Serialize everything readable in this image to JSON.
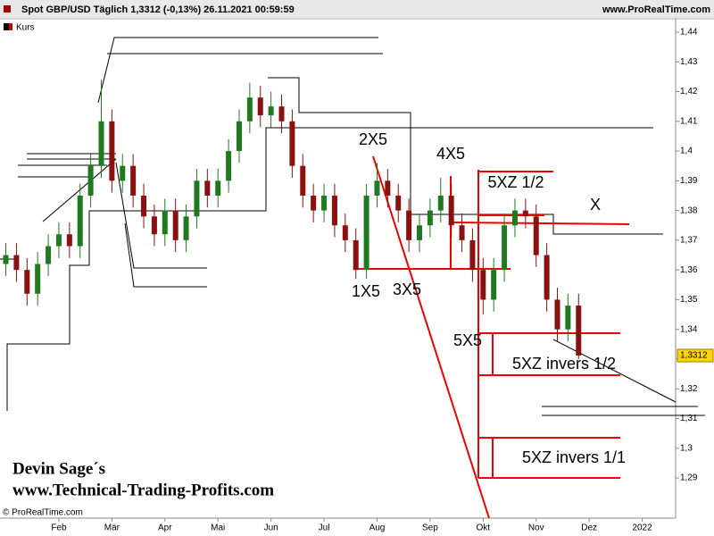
{
  "header": {
    "title": "Spot GBP/USD Täglich 1,3312 (-0,13%) 26.11.2021 00:59:59",
    "site": "www.ProRealTime.com",
    "legend": "Kurs",
    "copyright": "© ProRealTime.com"
  },
  "chart_data": {
    "type": "candlestick",
    "x": [
      0.0,
      0.2,
      0.4,
      0.6,
      0.8,
      1.0,
      1.2,
      1.4,
      1.6,
      1.8,
      2.0,
      2.2,
      2.4,
      2.6,
      2.8,
      3.0,
      3.2,
      3.4,
      3.6,
      3.8,
      4.0,
      4.2,
      4.4,
      4.6,
      4.8,
      5.0,
      5.2,
      5.4,
      5.6,
      5.8,
      6.0,
      6.2,
      6.4,
      6.6,
      6.8,
      7.0,
      7.2,
      7.4,
      7.6,
      7.8,
      8.0,
      8.2,
      8.4,
      8.6,
      8.8,
      9.0,
      9.2,
      9.4,
      9.6,
      9.8,
      10.0,
      10.2,
      10.4,
      10.6,
      10.8
    ],
    "open": [
      1.362,
      1.365,
      1.36,
      1.352,
      1.362,
      1.368,
      1.372,
      1.368,
      1.385,
      1.395,
      1.41,
      1.39,
      1.395,
      1.385,
      1.378,
      1.372,
      1.38,
      1.37,
      1.378,
      1.39,
      1.385,
      1.39,
      1.4,
      1.41,
      1.418,
      1.412,
      1.415,
      1.41,
      1.395,
      1.385,
      1.38,
      1.385,
      1.375,
      1.37,
      1.36,
      1.385,
      1.39,
      1.385,
      1.38,
      1.37,
      1.375,
      1.38,
      1.385,
      1.375,
      1.37,
      1.36,
      1.35,
      1.36,
      1.375,
      1.38,
      1.378,
      1.365,
      1.35,
      1.34,
      1.348
    ],
    "high": [
      1.369,
      1.369,
      1.364,
      1.366,
      1.372,
      1.376,
      1.376,
      1.389,
      1.399,
      1.424,
      1.414,
      1.399,
      1.399,
      1.389,
      1.382,
      1.384,
      1.384,
      1.382,
      1.394,
      1.394,
      1.394,
      1.404,
      1.414,
      1.423,
      1.422,
      1.42,
      1.419,
      1.414,
      1.399,
      1.389,
      1.389,
      1.389,
      1.379,
      1.374,
      1.389,
      1.396,
      1.394,
      1.389,
      1.384,
      1.379,
      1.384,
      1.391,
      1.389,
      1.379,
      1.374,
      1.364,
      1.364,
      1.379,
      1.384,
      1.384,
      1.382,
      1.369,
      1.354,
      1.352,
      1.352
    ],
    "low": [
      1.358,
      1.356,
      1.348,
      1.348,
      1.358,
      1.364,
      1.364,
      1.364,
      1.381,
      1.391,
      1.386,
      1.386,
      1.381,
      1.374,
      1.368,
      1.368,
      1.366,
      1.366,
      1.374,
      1.381,
      1.381,
      1.386,
      1.396,
      1.406,
      1.408,
      1.408,
      1.406,
      1.391,
      1.381,
      1.376,
      1.376,
      1.371,
      1.366,
      1.357,
      1.357,
      1.381,
      1.381,
      1.376,
      1.366,
      1.366,
      1.371,
      1.376,
      1.371,
      1.366,
      1.356,
      1.345,
      1.346,
      1.356,
      1.371,
      1.374,
      1.361,
      1.346,
      1.336,
      1.336,
      1.33
    ],
    "close": [
      1.365,
      1.36,
      1.352,
      1.362,
      1.368,
      1.372,
      1.368,
      1.385,
      1.395,
      1.41,
      1.39,
      1.395,
      1.385,
      1.378,
      1.372,
      1.38,
      1.37,
      1.378,
      1.39,
      1.385,
      1.39,
      1.4,
      1.41,
      1.418,
      1.412,
      1.415,
      1.41,
      1.395,
      1.385,
      1.38,
      1.385,
      1.375,
      1.37,
      1.36,
      1.385,
      1.39,
      1.385,
      1.38,
      1.37,
      1.375,
      1.38,
      1.385,
      1.375,
      1.37,
      1.36,
      1.35,
      1.36,
      1.375,
      1.38,
      1.378,
      1.365,
      1.35,
      1.34,
      1.348,
      1.3312
    ],
    "up_color": "#1f7a1f",
    "down_color": "#8b1010",
    "xlim": [
      -0.11,
      12.63
    ],
    "xticks": [
      {
        "value": 1,
        "label": "Feb"
      },
      {
        "value": 2,
        "label": "Mär"
      },
      {
        "value": 3,
        "label": "Apr"
      },
      {
        "value": 4,
        "label": "Mai"
      },
      {
        "value": 5,
        "label": "Jun"
      },
      {
        "value": 6,
        "label": "Jul"
      },
      {
        "value": 7,
        "label": "Aug"
      },
      {
        "value": 8,
        "label": "Sep"
      },
      {
        "value": 9,
        "label": "Okt"
      },
      {
        "value": 10,
        "label": "Nov"
      },
      {
        "value": 11,
        "label": "Dez"
      },
      {
        "value": 12,
        "label": "2022"
      }
    ],
    "ylim": [
      1.2765,
      1.4442
    ],
    "yticks": [
      {
        "value": 1.29,
        "label": "1,29"
      },
      {
        "value": 1.3,
        "label": "1,3"
      },
      {
        "value": 1.31,
        "label": "1,31"
      },
      {
        "value": 1.32,
        "label": "1,32"
      },
      {
        "value": 1.33,
        "label": "1,33"
      },
      {
        "value": 1.34,
        "label": "1,34"
      },
      {
        "value": 1.35,
        "label": "1,35"
      },
      {
        "value": 1.36,
        "label": "1,36"
      },
      {
        "value": 1.37,
        "label": "1,37"
      },
      {
        "value": 1.38,
        "label": "1,38"
      },
      {
        "value": 1.39,
        "label": "1,39"
      },
      {
        "value": 1.4,
        "label": "1,4"
      },
      {
        "value": 1.41,
        "label": "1,41"
      },
      {
        "value": 1.42,
        "label": "1,42"
      },
      {
        "value": 1.43,
        "label": "1,43"
      },
      {
        "value": 1.44,
        "label": "1,44"
      }
    ],
    "last_price": {
      "value": 1.3312,
      "label": "1,3312"
    },
    "annotations": [
      "2X5",
      "4X5",
      "5XZ 1/2",
      "X",
      "1X5",
      "3X5",
      "5X5",
      "5XZ invers 1/2",
      "5XZ invers 1/1"
    ],
    "watermark": [
      "Devin Sage´s",
      "www.Technical-Trading-Profits.com"
    ]
  }
}
